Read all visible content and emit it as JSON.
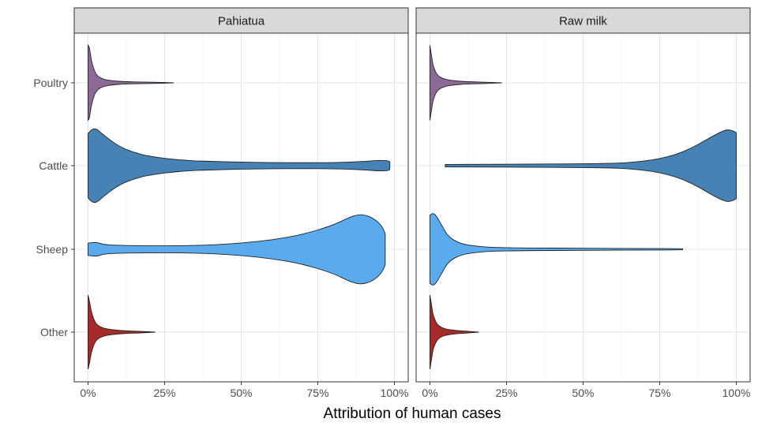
{
  "chart_data": {
    "type": "violin",
    "orientation": "horizontal",
    "x_label": "Attribution of human cases",
    "x_ticks": [
      "0%",
      "25%",
      "50%",
      "75%",
      "100%"
    ],
    "xlim": [
      0,
      1
    ],
    "categories": [
      "Poultry",
      "Cattle",
      "Sheep",
      "Other"
    ],
    "colors": {
      "Poultry": "#8B6A96",
      "Cattle": "#4682B4",
      "Sheep": "#5AABEE",
      "Other": "#A52A2A"
    },
    "grid": true,
    "panels": [
      {
        "title": "Pahiatua",
        "violins": [
          {
            "category": "Poultry",
            "min": 0.0,
            "max": 0.28,
            "density": [
              [
                0.0,
                0.97
              ],
              [
                0.005,
                0.92
              ],
              [
                0.01,
                0.6
              ],
              [
                0.02,
                0.32
              ],
              [
                0.03,
                0.18
              ],
              [
                0.05,
                0.09
              ],
              [
                0.08,
                0.05
              ],
              [
                0.12,
                0.03
              ],
              [
                0.18,
                0.02
              ],
              [
                0.24,
                0.012
              ],
              [
                0.28,
                0.0
              ]
            ]
          },
          {
            "category": "Cattle",
            "min": 0.0,
            "max": 0.985,
            "density": [
              [
                0.0,
                0.83
              ],
              [
                0.01,
                0.92
              ],
              [
                0.02,
                0.96
              ],
              [
                0.03,
                0.94
              ],
              [
                0.05,
                0.8
              ],
              [
                0.1,
                0.5
              ],
              [
                0.15,
                0.34
              ],
              [
                0.2,
                0.24
              ],
              [
                0.3,
                0.14
              ],
              [
                0.4,
                0.11
              ],
              [
                0.5,
                0.09
              ],
              [
                0.6,
                0.08
              ],
              [
                0.7,
                0.075
              ],
              [
                0.8,
                0.08
              ],
              [
                0.85,
                0.09
              ],
              [
                0.9,
                0.11
              ],
              [
                0.95,
                0.14
              ],
              [
                0.98,
                0.13
              ],
              [
                0.985,
                0.1
              ]
            ]
          },
          {
            "category": "Sheep",
            "min": 0.0,
            "max": 0.97,
            "density": [
              [
                0.0,
                0.16
              ],
              [
                0.01,
                0.17
              ],
              [
                0.03,
                0.18
              ],
              [
                0.05,
                0.12
              ],
              [
                0.1,
                0.1
              ],
              [
                0.2,
                0.09
              ],
              [
                0.3,
                0.09
              ],
              [
                0.4,
                0.11
              ],
              [
                0.5,
                0.16
              ],
              [
                0.6,
                0.24
              ],
              [
                0.7,
                0.38
              ],
              [
                0.8,
                0.62
              ],
              [
                0.85,
                0.82
              ],
              [
                0.89,
                0.92
              ],
              [
                0.93,
                0.82
              ],
              [
                0.96,
                0.6
              ],
              [
                0.97,
                0.4
              ]
            ]
          },
          {
            "category": "Other",
            "min": 0.0,
            "max": 0.22,
            "density": [
              [
                0.0,
                0.96
              ],
              [
                0.005,
                0.8
              ],
              [
                0.01,
                0.55
              ],
              [
                0.02,
                0.3
              ],
              [
                0.03,
                0.18
              ],
              [
                0.05,
                0.1
              ],
              [
                0.08,
                0.06
              ],
              [
                0.12,
                0.035
              ],
              [
                0.17,
                0.02
              ],
              [
                0.22,
                0.0
              ]
            ]
          }
        ]
      },
      {
        "title": "Raw milk",
        "violins": [
          {
            "category": "Poultry",
            "min": 0.0,
            "max": 0.235,
            "density": [
              [
                0.0,
                0.97
              ],
              [
                0.005,
                0.72
              ],
              [
                0.01,
                0.45
              ],
              [
                0.02,
                0.25
              ],
              [
                0.03,
                0.16
              ],
              [
                0.05,
                0.09
              ],
              [
                0.08,
                0.05
              ],
              [
                0.12,
                0.03
              ],
              [
                0.18,
                0.018
              ],
              [
                0.235,
                0.0
              ]
            ]
          },
          {
            "category": "Cattle",
            "min": 0.05,
            "max": 1.0,
            "density": [
              [
                0.05,
                0.03
              ],
              [
                0.07,
                0.035
              ],
              [
                0.15,
                0.035
              ],
              [
                0.3,
                0.04
              ],
              [
                0.5,
                0.05
              ],
              [
                0.6,
                0.06
              ],
              [
                0.65,
                0.08
              ],
              [
                0.7,
                0.12
              ],
              [
                0.75,
                0.18
              ],
              [
                0.8,
                0.28
              ],
              [
                0.85,
                0.44
              ],
              [
                0.9,
                0.66
              ],
              [
                0.94,
                0.84
              ],
              [
                0.97,
                0.94
              ],
              [
                0.99,
                0.9
              ],
              [
                1.0,
                0.85
              ]
            ]
          },
          {
            "category": "Sheep",
            "min": 0.0,
            "max": 0.825,
            "density": [
              [
                0.0,
                0.88
              ],
              [
                0.01,
                0.94
              ],
              [
                0.02,
                0.88
              ],
              [
                0.04,
                0.6
              ],
              [
                0.06,
                0.32
              ],
              [
                0.1,
                0.14
              ],
              [
                0.15,
                0.08
              ],
              [
                0.2,
                0.05
              ],
              [
                0.3,
                0.035
              ],
              [
                0.5,
                0.025
              ],
              [
                0.7,
                0.02
              ],
              [
                0.825,
                0.015
              ]
            ]
          },
          {
            "category": "Other",
            "min": 0.0,
            "max": 0.16,
            "density": [
              [
                0.0,
                0.96
              ],
              [
                0.005,
                0.72
              ],
              [
                0.01,
                0.45
              ],
              [
                0.02,
                0.25
              ],
              [
                0.03,
                0.15
              ],
              [
                0.05,
                0.08
              ],
              [
                0.08,
                0.045
              ],
              [
                0.12,
                0.025
              ],
              [
                0.16,
                0.0
              ]
            ]
          }
        ]
      }
    ]
  }
}
